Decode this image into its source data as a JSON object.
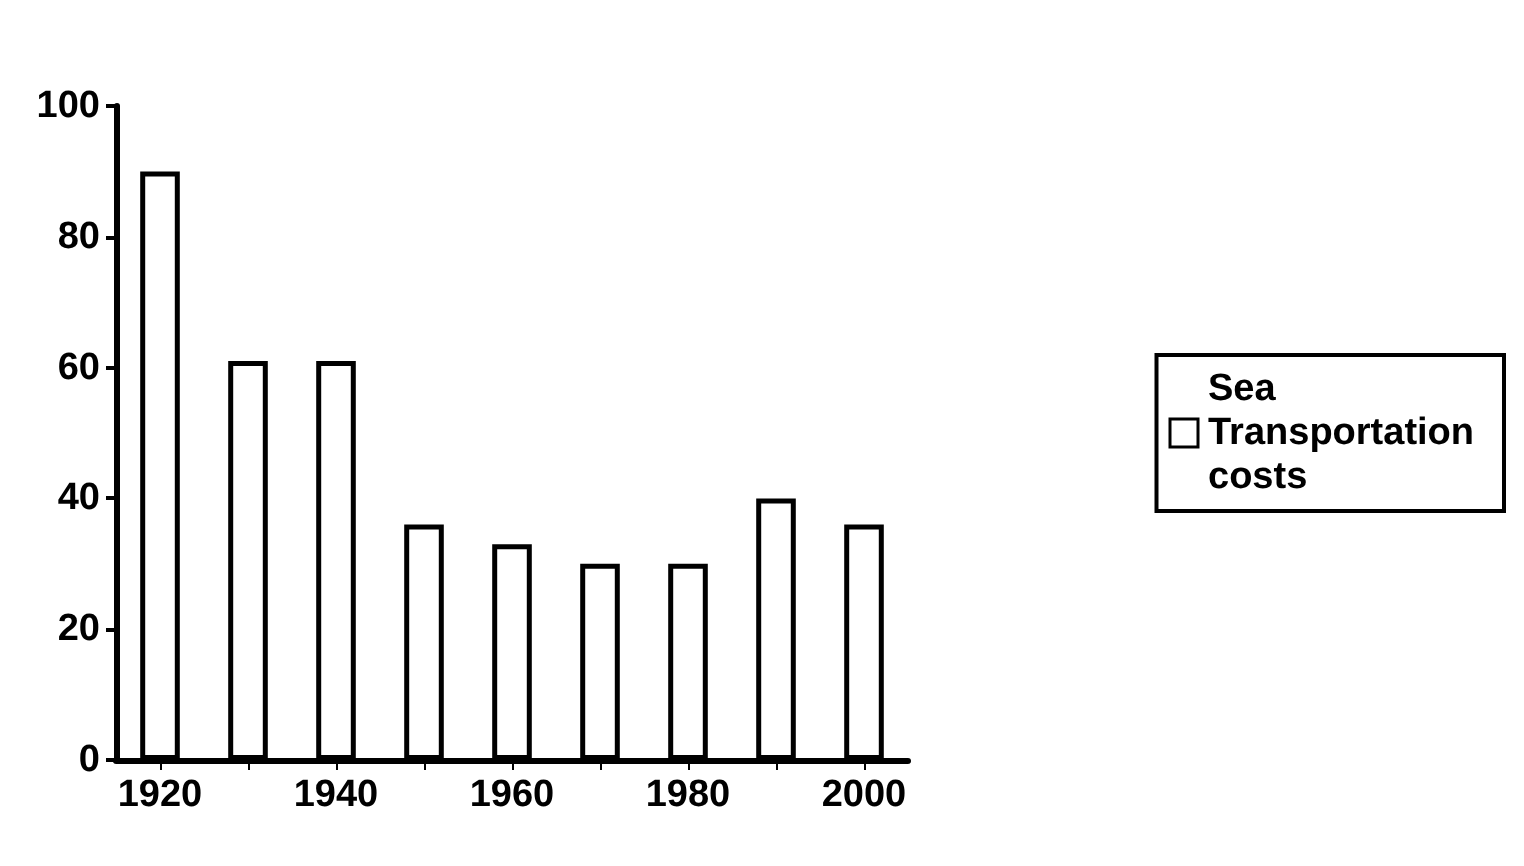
{
  "chart_data": {
    "type": "bar",
    "categories": [
      "1920",
      null,
      "1940",
      null,
      "1960",
      null,
      "1980",
      null,
      "2000"
    ],
    "series": [
      {
        "name": "Sea Transportation costs",
        "color": "#ffffff",
        "values": [
          90,
          61,
          61,
          36,
          33,
          30,
          30,
          40,
          36
        ]
      }
    ],
    "ylim": [
      0,
      100
    ],
    "yticks": [
      0,
      20,
      40,
      60,
      80,
      100
    ],
    "grid": false,
    "legend": "right"
  }
}
